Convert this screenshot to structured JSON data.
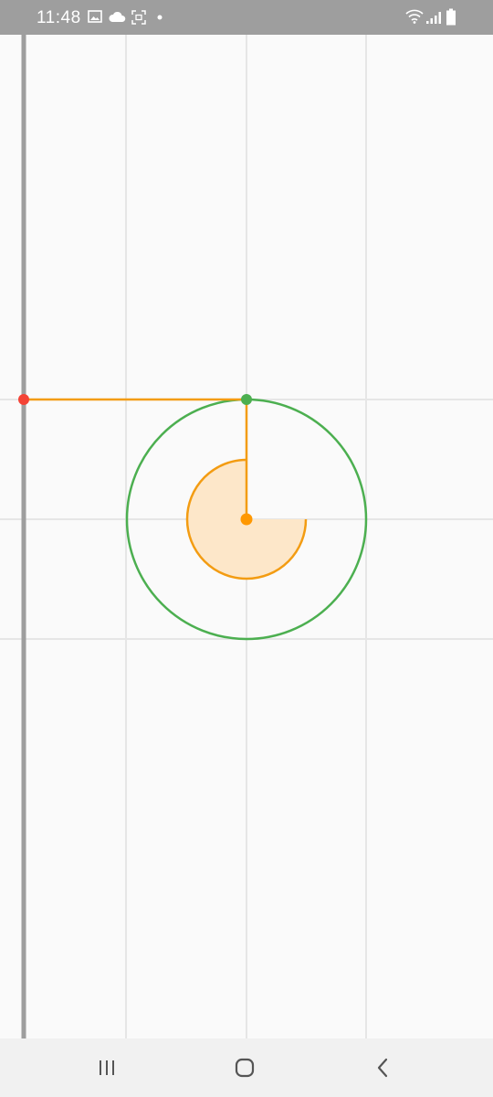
{
  "status_bar": {
    "time": "11:48",
    "left_icons": [
      "image-icon",
      "cloud-icon",
      "screenshot-icon",
      "notification-dot-icon"
    ],
    "right_icons": [
      "wifi-icon",
      "signal-icon",
      "battery-icon"
    ]
  },
  "canvas": {
    "background_color": "#fafafa",
    "grid_color": "#e6e6e6",
    "axis_color": "#9e9e9e",
    "outer_circle_color": "#4caf50",
    "projection_line_color": "#f39c12",
    "angle_fill_color": "#fde7c9",
    "center_point_color": "#ff9800",
    "circle_point_color": "#4caf50",
    "axis_point_color": "#f44336",
    "angle_arc_degrees": 270
  },
  "nav_bar": {
    "buttons": [
      "recent-apps-icon",
      "home-icon",
      "back-icon"
    ]
  }
}
